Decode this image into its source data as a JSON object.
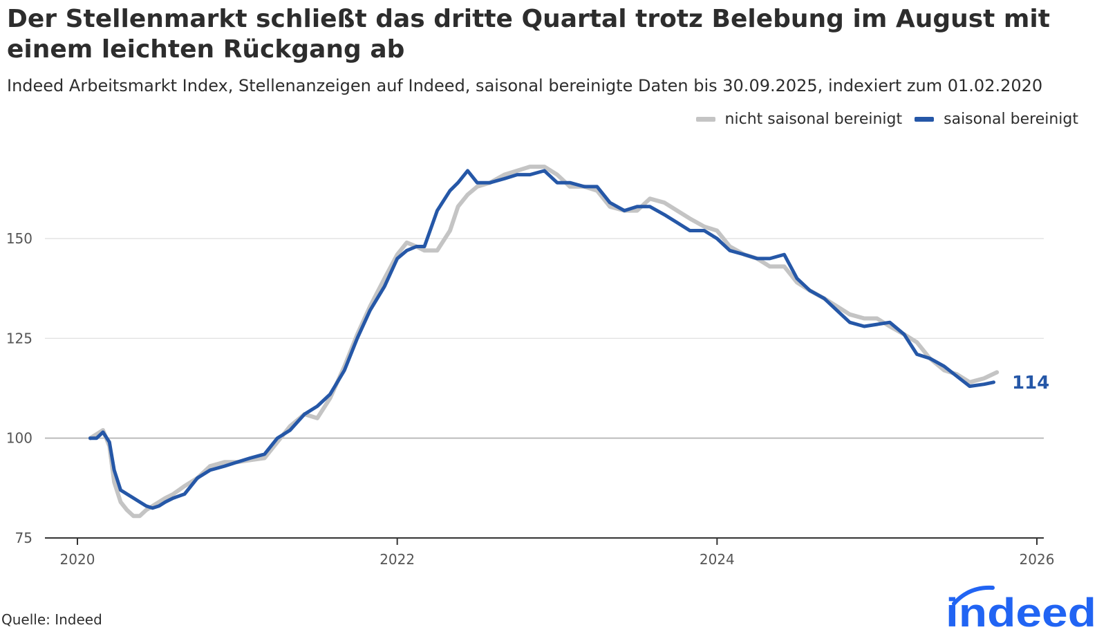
{
  "header": {
    "title": "Der Stellenmarkt schließt das dritte Quartal trotz Belebung im August mit einem leichten Rückgang ab",
    "subtitle": "Indeed Arbeitsmarkt Index, Stellenanzeigen auf Indeed, saisonal bereinigte Daten bis 30.09.2025, indexiert zum 01.02.2020"
  },
  "footer": {
    "source": "Quelle: Indeed",
    "logo_text": "indeed"
  },
  "colors": {
    "nsa": "#c4c4c4",
    "sa": "#2557a7",
    "grid": "#dddddd",
    "baseline": "#bbbbbb",
    "axis": "#333333",
    "brand": "#2164f3",
    "text": "#2d2d2d"
  },
  "chart_data": {
    "type": "line",
    "title": "Der Stellenmarkt schließt das dritte Quartal trotz Belebung im August mit einem leichten Rückgang ab",
    "xlabel": "",
    "ylabel": "",
    "xlim": [
      2020.0,
      2026.0
    ],
    "ylim": [
      75,
      171
    ],
    "y_ticks": [
      75,
      100,
      125,
      150
    ],
    "y_tick_labels": [
      "75",
      "100",
      "125",
      "150"
    ],
    "x_ticks": [
      2020,
      2022,
      2024,
      2026
    ],
    "x_tick_labels": [
      "2020",
      "2022",
      "2024",
      "2026"
    ],
    "grid": true,
    "legend_position": "top-right",
    "end_label": "114",
    "series": [
      {
        "name": "nicht saisonal bereinigt",
        "x": [
          2020.08,
          2020.12,
          2020.16,
          2020.2,
          2020.23,
          2020.27,
          2020.31,
          2020.35,
          2020.39,
          2020.43,
          2020.47,
          2020.51,
          2020.55,
          2020.6,
          2020.67,
          2020.75,
          2020.83,
          2020.92,
          2021.0,
          2021.08,
          2021.17,
          2021.25,
          2021.33,
          2021.42,
          2021.5,
          2021.58,
          2021.67,
          2021.75,
          2021.83,
          2021.92,
          2022.0,
          2022.06,
          2022.12,
          2022.17,
          2022.25,
          2022.33,
          2022.38,
          2022.44,
          2022.5,
          2022.58,
          2022.67,
          2022.75,
          2022.83,
          2022.92,
          2023.0,
          2023.08,
          2023.17,
          2023.25,
          2023.33,
          2023.42,
          2023.5,
          2023.58,
          2023.67,
          2023.75,
          2023.83,
          2023.92,
          2024.0,
          2024.08,
          2024.17,
          2024.25,
          2024.33,
          2024.42,
          2024.5,
          2024.58,
          2024.67,
          2024.75,
          2024.83,
          2024.92,
          2025.0,
          2025.08,
          2025.17,
          2025.25,
          2025.33,
          2025.42,
          2025.5,
          2025.58,
          2025.67,
          2025.75
        ],
        "values": [
          100,
          101,
          102,
          98,
          89,
          84,
          82,
          80.5,
          80.5,
          82,
          83,
          84,
          85,
          86,
          88,
          90,
          93,
          94,
          94,
          94.5,
          95,
          99,
          103,
          106,
          105,
          110,
          118,
          126,
          133,
          140,
          146,
          149,
          148,
          147,
          147,
          152,
          158,
          161,
          163,
          164,
          166,
          167,
          168,
          168,
          166,
          163,
          163,
          162,
          158,
          157,
          157,
          160,
          159,
          157,
          155,
          153,
          152,
          148,
          146,
          145,
          143,
          143,
          139,
          137,
          135,
          133,
          131,
          130,
          130,
          128,
          126,
          124,
          120,
          117,
          116,
          114,
          115,
          116.5
        ]
      },
      {
        "name": "saisonal bereinigt",
        "x": [
          2020.08,
          2020.12,
          2020.16,
          2020.2,
          2020.23,
          2020.27,
          2020.31,
          2020.35,
          2020.39,
          2020.43,
          2020.47,
          2020.51,
          2020.55,
          2020.6,
          2020.67,
          2020.75,
          2020.83,
          2020.92,
          2021.0,
          2021.08,
          2021.17,
          2021.25,
          2021.33,
          2021.42,
          2021.5,
          2021.58,
          2021.67,
          2021.75,
          2021.83,
          2021.92,
          2022.0,
          2022.06,
          2022.12,
          2022.17,
          2022.25,
          2022.33,
          2022.38,
          2022.44,
          2022.5,
          2022.58,
          2022.67,
          2022.75,
          2022.83,
          2022.92,
          2023.0,
          2023.08,
          2023.17,
          2023.25,
          2023.33,
          2023.42,
          2023.5,
          2023.58,
          2023.67,
          2023.75,
          2023.83,
          2023.92,
          2024.0,
          2024.08,
          2024.17,
          2024.25,
          2024.33,
          2024.42,
          2024.5,
          2024.58,
          2024.67,
          2024.75,
          2024.83,
          2024.92,
          2025.0,
          2025.08,
          2025.17,
          2025.25,
          2025.33,
          2025.42,
          2025.5,
          2025.58,
          2025.67,
          2025.73
        ],
        "values": [
          100,
          100,
          101.5,
          99,
          92,
          87,
          86,
          85,
          84,
          83,
          82.5,
          83,
          84,
          85,
          86,
          90,
          92,
          93,
          94,
          95,
          96,
          100,
          102,
          106,
          108,
          111,
          117,
          125,
          132,
          138,
          145,
          147,
          148,
          148,
          157,
          162,
          164,
          167,
          164,
          164,
          165,
          166,
          166,
          167,
          164,
          164,
          163,
          163,
          159,
          157,
          158,
          158,
          156,
          154,
          152,
          152,
          150,
          147,
          146,
          145,
          145,
          146,
          140,
          137,
          135,
          132,
          129,
          128,
          128.5,
          129,
          126,
          121,
          120,
          118,
          115.5,
          113,
          113.5,
          114
        ]
      }
    ]
  }
}
